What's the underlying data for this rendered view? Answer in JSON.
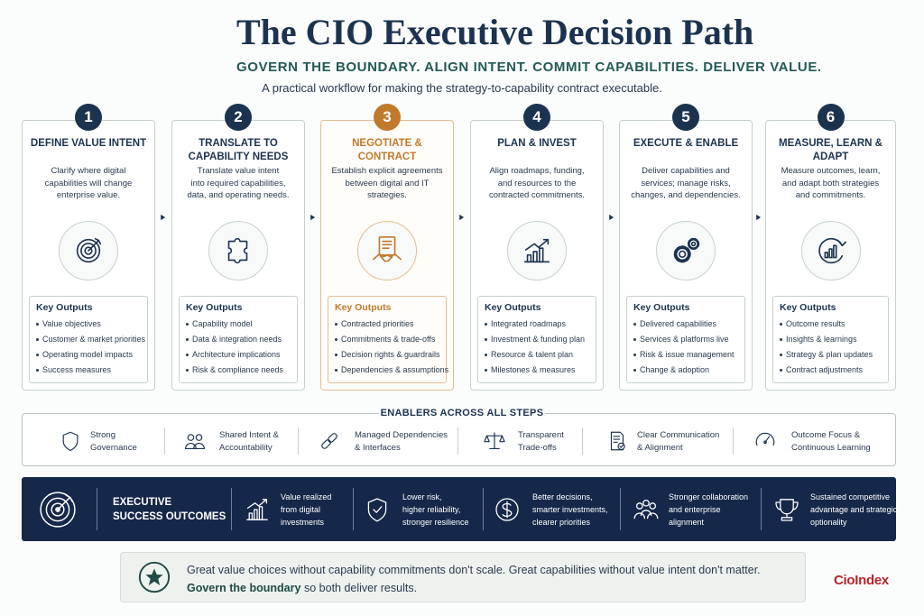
{
  "header": {
    "title": "The CIO Executive Decision Path",
    "tagline": "GOVERN THE BOUNDARY. ALIGN INTENT. COMMIT CAPABILITIES. DELIVER VALUE.",
    "subtitle": "A practical workflow for making the strategy-to-capability contract executable."
  },
  "steps": [
    {
      "number": 1,
      "title": [
        "DEFINE VALUE INTENT"
      ],
      "description": [
        "Clarify where digital",
        "capabilities will change",
        "enterprise value."
      ],
      "outputs_title": "Key Outputs",
      "outputs": [
        "Value objectives",
        "Customer & market priorities",
        "Operating model impacts",
        "Success measures"
      ]
    },
    {
      "number": 2,
      "title": [
        "TRANSLATE TO",
        "CAPABILITY NEEDS"
      ],
      "description": [
        "Translate value intent",
        "into required capabilities,",
        "data, and operating needs."
      ],
      "outputs_title": "Key Outputs",
      "outputs": [
        "Capability model",
        "Data & integration needs",
        "Architecture implications",
        "Risk & compliance needs"
      ]
    },
    {
      "number": 3,
      "title": [
        "NEGOTIATE &",
        "CONTRACT"
      ],
      "description": [
        "Establish explicit agreements",
        "between digital and IT",
        "strategies."
      ],
      "outputs_title": "Key Outputs",
      "outputs": [
        "Contracted priorities",
        "Commitments & trade-offs",
        "Decision rights & guardrails",
        "Dependencies & assumptions"
      ]
    },
    {
      "number": 4,
      "title": [
        "PLAN & INVEST"
      ],
      "description": [
        "Align roadmaps, funding,",
        "and resources to the",
        "contracted commitments."
      ],
      "outputs_title": "Key Outputs",
      "outputs": [
        "Integrated roadmaps",
        "Investment & funding plan",
        "Resource & talent plan",
        "Milestones & measures"
      ]
    },
    {
      "number": 5,
      "title": [
        "EXECUTE & ENABLE"
      ],
      "description": [
        "Deliver capabilities and",
        "services; manage risks,",
        "changes, and dependencies."
      ],
      "outputs_title": "Key Outputs",
      "outputs": [
        "Delivered capabilities",
        "Services & platforms live",
        "Risk & issue management",
        "Change & adoption"
      ]
    },
    {
      "number": 6,
      "title": [
        "MEASURE, LEARN &",
        "ADAPT"
      ],
      "description": [
        "Measure outcomes, learn,",
        "and adapt both strategies",
        "and commitments."
      ],
      "outputs_title": "Key Outputs",
      "outputs": [
        "Outcome results",
        "Insights & learnings",
        "Strategy & plan updates",
        "Contract adjustments"
      ]
    }
  ],
  "enablers": {
    "title": "ENABLERS ACROSS ALL STEPS",
    "items": [
      [
        "Strong",
        "Governance"
      ],
      [
        "Shared Intent &",
        "Accountability"
      ],
      [
        "Managed Dependencies",
        "& Interfaces"
      ],
      [
        "Transparent",
        "Trade-offs"
      ],
      [
        "Clear Communication",
        "& Alignment"
      ],
      [
        "Outcome Focus &",
        "Continuous Learning"
      ]
    ]
  },
  "outcomes": {
    "title": [
      "EXECUTIVE",
      "SUCCESS OUTCOMES"
    ],
    "items": [
      [
        "Value realized",
        "from digital",
        "investments"
      ],
      [
        "Lower risk,",
        "higher reliability,",
        "stronger resilience"
      ],
      [
        "Better decisions,",
        "smarter investments,",
        "clearer priorities"
      ],
      [
        "Stronger collaboration",
        "and enterprise",
        "alignment"
      ],
      [
        "Sustained competitive",
        "advantage and strategic",
        "optionality"
      ]
    ]
  },
  "footer": {
    "line1": "Great value choices without capability commitments don't scale. Great capabilities without value intent don't matter.",
    "line2_bold": "Govern the boundary",
    "line2_rest": "so both deliver results.",
    "brand": "CioIndex"
  }
}
